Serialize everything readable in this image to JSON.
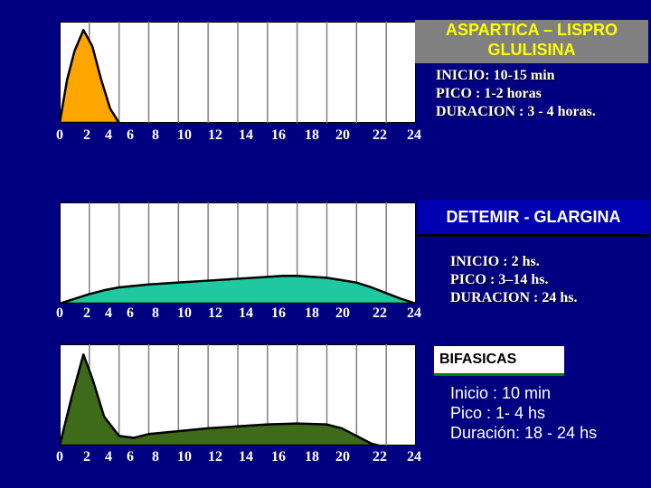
{
  "panels": [
    {
      "title_lines": [
        "ASPARTICA – LISPRO",
        "GLULISINA"
      ],
      "info_lines": [
        "INICIO: 10-15 min",
        "PICO : 1-2 horas",
        "DURACION : 3 - 4 horas."
      ]
    },
    {
      "title_lines": [
        "DETEMIR - GLARGINA"
      ],
      "info_lines": [
        "INICIO : 2 hs.",
        "PICO : 3–14 hs.",
        "DURACION : 24 hs."
      ]
    },
    {
      "title_lines": [
        "BIFASICAS"
      ],
      "info_lines": [
        "Inicio : 10 min",
        "Pico : 1- 4 hs",
        "Duración: 18 - 24 hs"
      ]
    }
  ],
  "chart_data": [
    {
      "type": "area",
      "x_ticks": [
        "0",
        "2",
        "4",
        "6",
        "8",
        "10",
        "12",
        "14",
        "16",
        "18",
        "20",
        "22",
        "24"
      ],
      "xlim": [
        0,
        24
      ],
      "ylim": [
        0,
        1
      ],
      "grid": true,
      "colors": {
        "fill": "#ffa500",
        "stroke": "#000000",
        "plot_bg": "#ffffff",
        "grid": "#808080"
      },
      "series": [
        {
          "x": [
            0,
            0.5,
            1,
            1.6,
            2.2,
            2.8,
            3.4,
            4
          ],
          "y": [
            0,
            0.45,
            0.75,
            0.97,
            0.8,
            0.45,
            0.15,
            0
          ]
        }
      ]
    },
    {
      "type": "area",
      "x_ticks": [
        "0",
        "2",
        "4",
        "6",
        "8",
        "10",
        "12",
        "14",
        "16",
        "18",
        "20",
        "22",
        "24"
      ],
      "xlim": [
        0,
        24
      ],
      "ylim": [
        0,
        1
      ],
      "grid": true,
      "colors": {
        "fill": "#20c8a0",
        "stroke": "#000000",
        "plot_bg": "#ffffff",
        "grid": "#808080"
      },
      "series": [
        {
          "x": [
            0,
            1,
            2,
            3,
            4,
            6,
            8,
            10,
            12,
            14,
            15,
            16,
            18,
            20,
            21,
            22,
            23,
            24
          ],
          "y": [
            0,
            0.05,
            0.1,
            0.14,
            0.17,
            0.2,
            0.22,
            0.24,
            0.26,
            0.28,
            0.29,
            0.29,
            0.27,
            0.22,
            0.17,
            0.11,
            0.05,
            0
          ]
        }
      ]
    },
    {
      "type": "area",
      "x_ticks": [
        "0",
        "2",
        "4",
        "6",
        "8",
        "10",
        "12",
        "14",
        "16",
        "18",
        "20",
        "22",
        "24"
      ],
      "xlim": [
        0,
        24
      ],
      "ylim": [
        0,
        1
      ],
      "grid": true,
      "colors": {
        "fill": "#3d6b1a",
        "stroke": "#000000",
        "plot_bg": "#ffffff",
        "grid": "#808080"
      },
      "series": [
        {
          "x": [
            0,
            0.8,
            1.6,
            2.2,
            3,
            4,
            5,
            6,
            8,
            10,
            12,
            14,
            16,
            18,
            19,
            20,
            21,
            21.5
          ],
          "y": [
            0,
            0.5,
            0.95,
            0.7,
            0.3,
            0.1,
            0.08,
            0.12,
            0.15,
            0.18,
            0.2,
            0.22,
            0.23,
            0.22,
            0.18,
            0.1,
            0.02,
            0
          ]
        }
      ]
    }
  ]
}
